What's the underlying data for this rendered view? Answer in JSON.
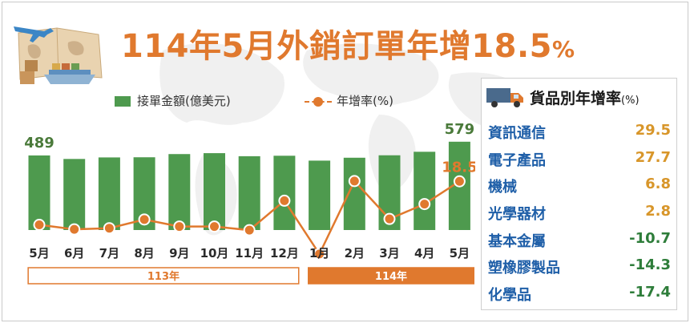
{
  "title": {
    "main": "114年5月外銷訂單年增18.5",
    "pct_sign": "%"
  },
  "legend": {
    "bar_label": "接單金額(億美元)",
    "line_label": "年增率(%)"
  },
  "colors": {
    "bar": "#4e9a4e",
    "line": "#e0792e",
    "title": "#e0792e",
    "label_green": "#4a7a3a",
    "year_113": "#ffffff",
    "year_114": "#e0792e",
    "positive": "#d8962a",
    "negative": "#2e7d3a",
    "category": "#1f5fa8"
  },
  "chart_data": {
    "type": "bar+line",
    "categories": [
      "5月",
      "6月",
      "7月",
      "8月",
      "9月",
      "10月",
      "11月",
      "12月",
      "1月",
      "2月",
      "3月",
      "4月",
      "5月"
    ],
    "series": [
      {
        "name": "接單金額(億美元)",
        "type": "bar",
        "values": [
          489,
          466,
          476,
          477,
          498,
          504,
          484,
          487,
          455,
          474,
          490,
          513,
          579
        ]
      },
      {
        "name": "年增率(%)",
        "type": "line",
        "values": [
          3.0,
          1.4,
          1.8,
          4.9,
          2.4,
          2.4,
          1.1,
          11.6,
          -7.4,
          18.6,
          5.1,
          10.4,
          18.5
        ]
      }
    ],
    "data_labels": [
      {
        "series": 0,
        "index": 0,
        "text": "489"
      },
      {
        "series": 0,
        "index": 12,
        "text": "579"
      },
      {
        "series": 1,
        "index": 12,
        "text": "18.5"
      }
    ],
    "year_bands": [
      {
        "label": "113年",
        "start": 0,
        "end": 7
      },
      {
        "label": "114年",
        "start": 8,
        "end": 12
      }
    ]
  },
  "panel": {
    "title": "貨品別年增率",
    "unit": "(%)",
    "icon": "truck-icon",
    "rows": [
      {
        "name": "資訊通信",
        "value": "29.5",
        "sign": "pos"
      },
      {
        "name": "電子產品",
        "value": "27.7",
        "sign": "pos"
      },
      {
        "name": "機械",
        "value": "6.8",
        "sign": "pos"
      },
      {
        "name": "光學器材",
        "value": "2.8",
        "sign": "pos"
      },
      {
        "name": "基本金屬",
        "value": "-10.7",
        "sign": "neg"
      },
      {
        "name": "塑橡膠製品",
        "value": "-14.3",
        "sign": "neg"
      },
      {
        "name": "化學品",
        "value": "-17.4",
        "sign": "neg"
      }
    ]
  }
}
